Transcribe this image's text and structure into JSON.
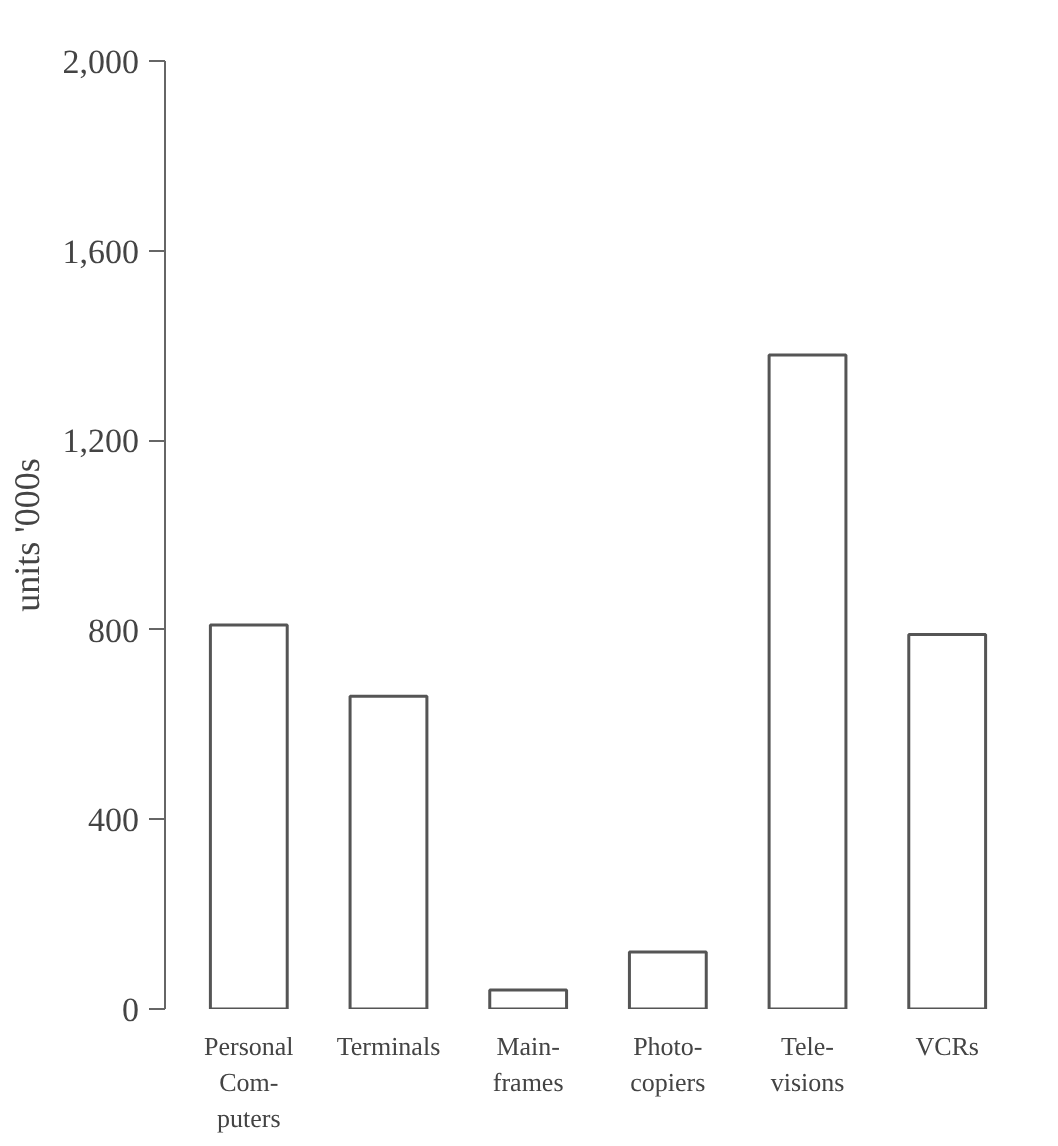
{
  "chart_data": {
    "type": "bar",
    "ylabel": "units '000s",
    "categories": [
      "Personal\nCom-\nputers",
      "Terminals",
      "Main-\nframes",
      "Photo-\ncopiers",
      "Tele-\nvisions",
      "VCRs"
    ],
    "values": [
      810,
      660,
      40,
      120,
      1380,
      790
    ],
    "color": "#ffffff",
    "ylim": [
      0,
      2000
    ],
    "yticks": [
      {
        "value": 0,
        "label": "0"
      },
      {
        "value": 400,
        "label": "400"
      },
      {
        "value": 800,
        "label": "800"
      },
      {
        "value": 1200,
        "label": "1,200"
      },
      {
        "value": 1600,
        "label": "1,600"
      },
      {
        "value": 2000,
        "label": "2,000"
      }
    ],
    "grid": false
  }
}
